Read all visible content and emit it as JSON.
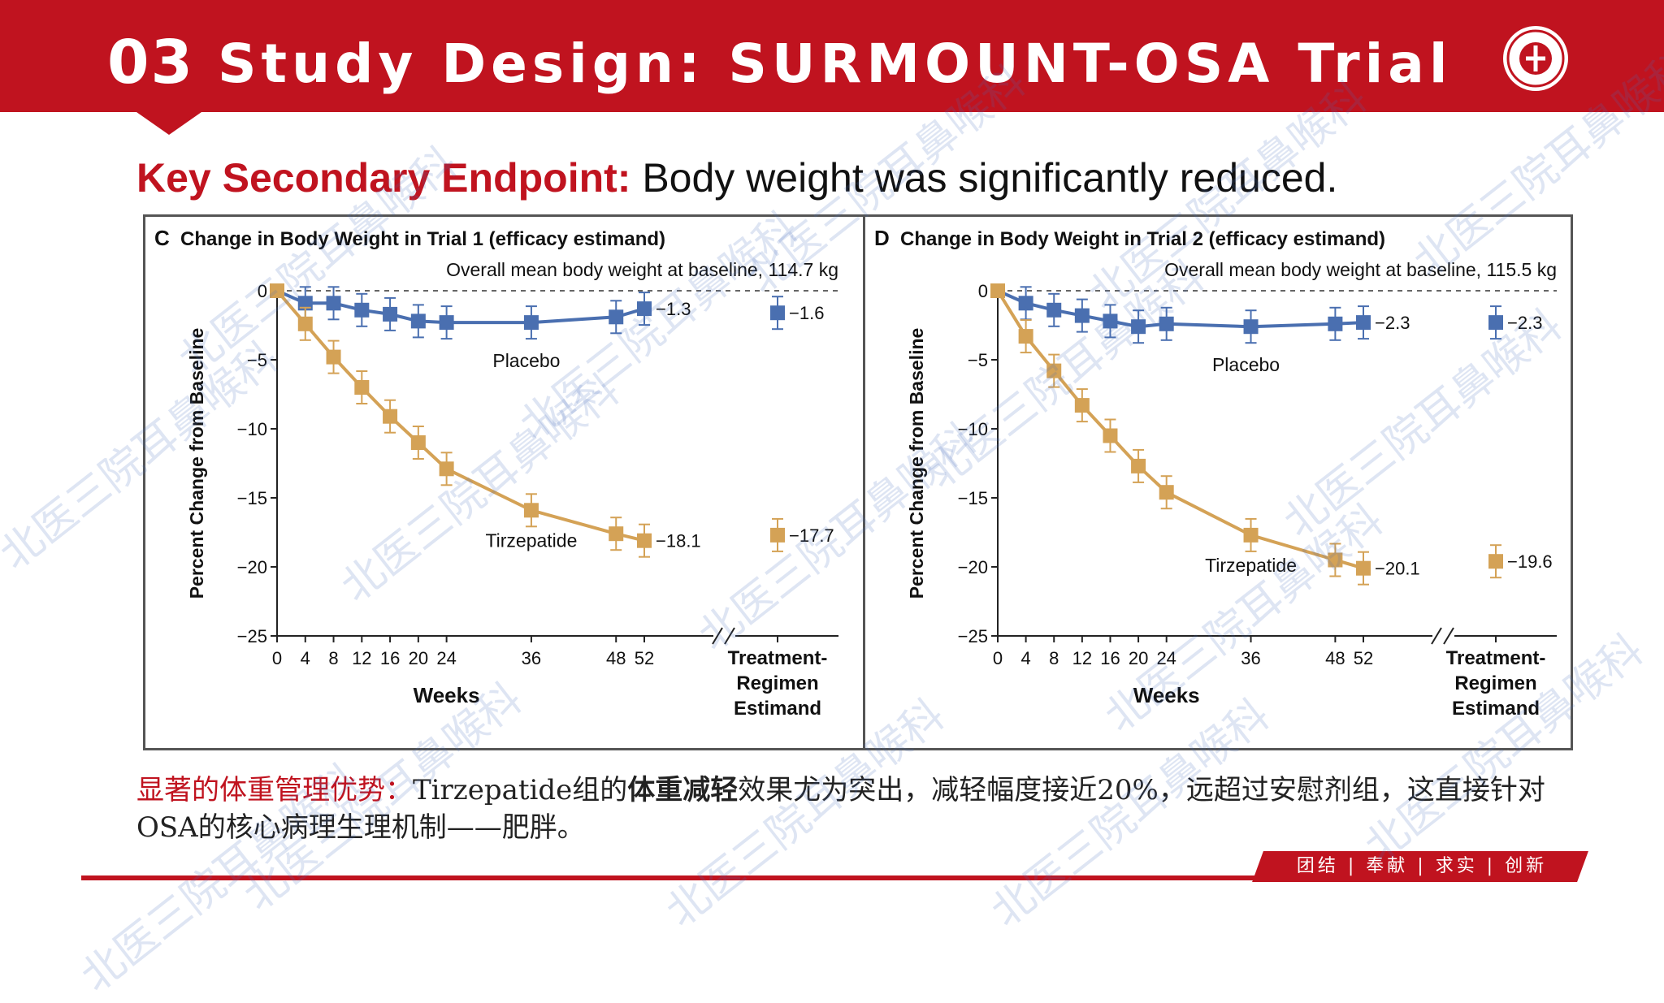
{
  "header": {
    "slide_number": "03",
    "title": "Study Design: SURMOUNT-OSA Trial",
    "brand_color": "#c0131f"
  },
  "subtitle": {
    "lead": "Key Secondary Endpoint:",
    "text": " Body weight was significantly reduced."
  },
  "caption": {
    "lead": "显著的体重管理优势：",
    "text1": "Tirzepatide组的",
    "strong": "体重减轻",
    "text2": "效果尤为突出，减轻幅度接近20%，远超过安慰剂组，这直接针对OSA的核心病理生理机制——肥胖。"
  },
  "footer": {
    "motto": "团结 | 奉献 | 求实 | 创新"
  },
  "watermark": {
    "text": "北医三院耳鼻喉科"
  },
  "chart_data": [
    {
      "type": "line",
      "panel_letter": "C",
      "title": "Change in Body Weight in Trial 1 (efficacy estimand)",
      "subtitle": "Overall mean body weight at baseline, 114.7 kg",
      "xlabel": "Weeks",
      "ylabel": "Percent Change from Baseline",
      "ylim": [
        -25,
        0
      ],
      "yticks": [
        0,
        -5,
        -10,
        -15,
        -20,
        -25
      ],
      "xticks": [
        0,
        4,
        8,
        12,
        16,
        20,
        24,
        36,
        48,
        52
      ],
      "x": [
        0,
        4,
        8,
        12,
        16,
        20,
        24,
        36,
        48,
        52
      ],
      "treatment_regimen_label": "Treatment-Regimen Estimand",
      "series": [
        {
          "name": "Placebo",
          "color": "#4a6fb0",
          "values": [
            0,
            -0.9,
            -0.9,
            -1.4,
            -1.7,
            -2.2,
            -2.3,
            -2.3,
            -1.9,
            -1.3
          ],
          "end_label": "−1.3",
          "regimen_value": -1.6,
          "regimen_label": "−1.6"
        },
        {
          "name": "Tirzepatide",
          "color": "#d4a256",
          "values": [
            0,
            -2.4,
            -4.8,
            -7.0,
            -9.1,
            -11.0,
            -12.9,
            -15.9,
            -17.6,
            -18.1
          ],
          "end_label": "−18.1",
          "regimen_value": -17.7,
          "regimen_label": "−17.7"
        }
      ]
    },
    {
      "type": "line",
      "panel_letter": "D",
      "title": "Change in Body Weight in Trial 2 (efficacy estimand)",
      "subtitle": "Overall mean body weight at baseline, 115.5 kg",
      "xlabel": "Weeks",
      "ylabel": "Percent Change from Baseline",
      "ylim": [
        -25,
        0
      ],
      "yticks": [
        0,
        -5,
        -10,
        -15,
        -20,
        -25
      ],
      "xticks": [
        0,
        4,
        8,
        12,
        16,
        20,
        24,
        36,
        48,
        52
      ],
      "x": [
        0,
        4,
        8,
        12,
        16,
        20,
        24,
        36,
        48,
        52
      ],
      "treatment_regimen_label": "Treatment-Regimen Estimand",
      "series": [
        {
          "name": "Placebo",
          "color": "#4a6fb0",
          "values": [
            0,
            -0.9,
            -1.4,
            -1.8,
            -2.2,
            -2.6,
            -2.4,
            -2.6,
            -2.4,
            -2.3
          ],
          "end_label": "−2.3",
          "regimen_value": -2.3,
          "regimen_label": "−2.3"
        },
        {
          "name": "Tirzepatide",
          "color": "#d4a256",
          "values": [
            0,
            -3.3,
            -5.8,
            -8.3,
            -10.5,
            -12.7,
            -14.6,
            -17.7,
            -19.5,
            -20.1
          ],
          "end_label": "−20.1",
          "regimen_value": -19.6,
          "regimen_label": "−19.6"
        }
      ]
    }
  ]
}
